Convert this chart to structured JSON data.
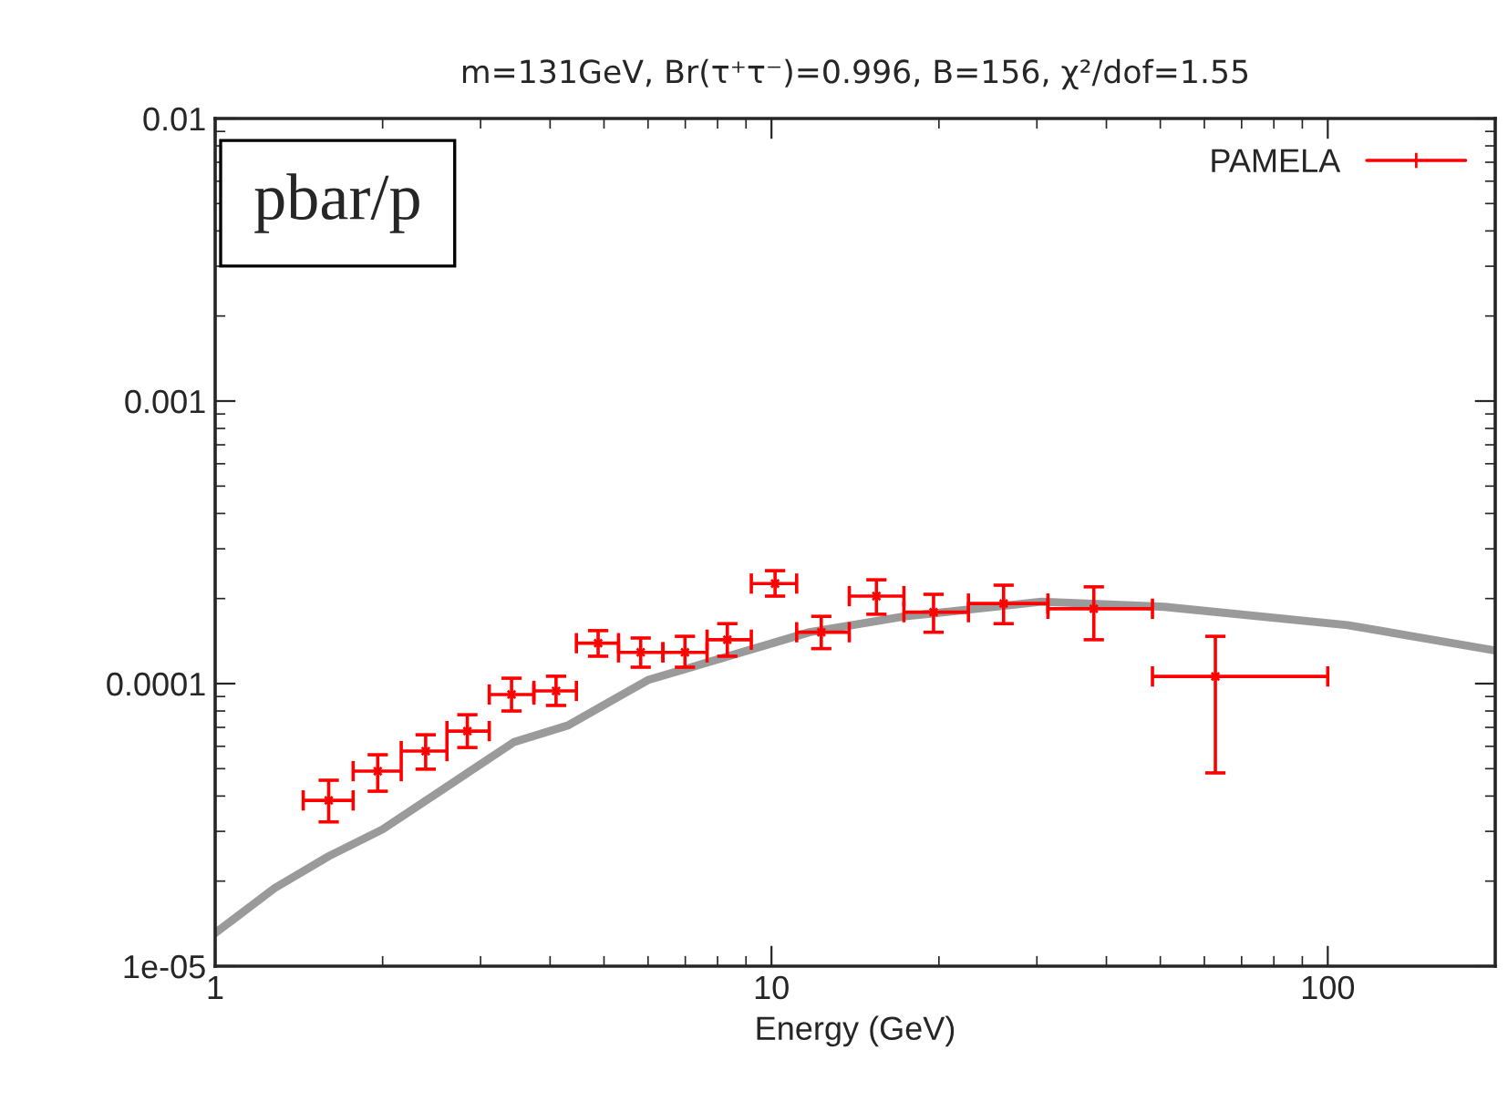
{
  "chart_data": {
    "type": "scatter",
    "title": "m=131GeV, Br(τ⁺τ⁻)=0.996, B=156, χ²/dof=1.55",
    "xlabel": "Energy (GeV)",
    "annotations": [
      "pbar/p"
    ],
    "log": "xy",
    "xlim": [
      1,
      200
    ],
    "ylim": [
      1e-05,
      0.01
    ],
    "xticks": [
      1,
      10,
      100
    ],
    "yticks": [
      {
        "value": 1e-05,
        "label": "1e-05"
      },
      {
        "value": 0.0001,
        "label": "0.0001"
      },
      {
        "value": 0.001,
        "label": "0.001"
      },
      {
        "value": 0.01,
        "label": "0.01"
      }
    ],
    "grid": false,
    "legend": "top right",
    "series": [
      {
        "type": "line",
        "color": "#888888",
        "x": [
          1,
          1.28,
          1.6,
          2,
          3.44,
          4.3,
          6,
          11.7,
          17.4,
          30.6,
          50.8,
          108.6,
          200
        ],
        "values": [
          1.31e-05,
          1.89e-05,
          2.45e-05,
          3.05e-05,
          6.2e-05,
          7.1e-05,
          0.000103,
          0.000152,
          0.000173,
          0.000195,
          0.000187,
          0.000161,
          0.000131
        ]
      },
      {
        "name": "PAMELA",
        "color": "#ff0000",
        "marker": "cross",
        "x": [
          1.6,
          1.96,
          2.39,
          2.84,
          3.41,
          4.1,
          4.88,
          5.82,
          6.99,
          8.33,
          10.15,
          12.29,
          15.44,
          19.56,
          26.14,
          37.97,
          62.8
        ],
        "values": [
          3.86e-05,
          4.9e-05,
          5.77e-05,
          6.79e-05,
          9.15e-05,
          9.42e-05,
          0.000139,
          0.000129,
          0.000129,
          0.000143,
          0.000226,
          0.000152,
          0.000204,
          0.000179,
          0.000192,
          0.000184,
          0.000106
        ],
        "errors": [
          [
            3.24e-05,
            4.55e-05
          ],
          [
            4.16e-05,
            5.6e-05
          ],
          [
            4.98e-05,
            6.59e-05
          ],
          [
            5.94e-05,
            7.76e-05
          ],
          [
            8e-05,
            0.0001045
          ],
          [
            8.37e-05,
            0.0001062
          ],
          [
            0.000125,
            0.000154
          ],
          [
            0.0001143,
            0.000145
          ],
          [
            0.0001143,
            0.000147
          ],
          [
            0.000125,
            0.000163
          ],
          [
            0.000204,
            0.000251
          ],
          [
            0.000133,
            0.000173
          ],
          [
            0.000176,
            0.000233
          ],
          [
            0.000152,
            0.000207
          ],
          [
            0.000163,
            0.000223
          ],
          [
            0.000143,
            0.00022
          ],
          [
            4.83e-05,
            0.000147
          ]
        ],
        "xerrors": [
          [
            1.44,
            1.77
          ],
          [
            1.77,
            2.16
          ],
          [
            2.16,
            2.61
          ],
          [
            2.61,
            3.11
          ],
          [
            3.11,
            3.74
          ],
          [
            3.74,
            4.46
          ],
          [
            4.46,
            5.31
          ],
          [
            5.31,
            6.38
          ],
          [
            6.38,
            7.66
          ],
          [
            7.66,
            9.2
          ],
          [
            9.2,
            11.1
          ],
          [
            11.1,
            13.8
          ],
          [
            13.8,
            17.3
          ],
          [
            17.3,
            22.6
          ],
          [
            22.6,
            31.4
          ],
          [
            31.4,
            48.4
          ],
          [
            48.4,
            100
          ]
        ]
      }
    ]
  }
}
